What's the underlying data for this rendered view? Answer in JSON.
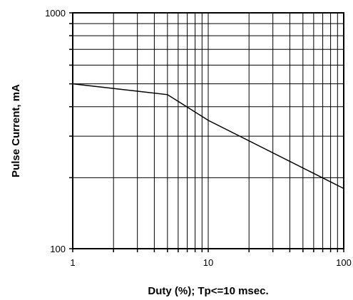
{
  "chart_data": {
    "type": "line",
    "title": "",
    "xlabel": "Duty (%); Tp<=10 msec.",
    "ylabel": "Pulse Current, mA",
    "x_scale": "log",
    "y_scale": "log",
    "xlim": [
      1,
      100
    ],
    "ylim": [
      100,
      1000
    ],
    "grid": true,
    "x_tick_labels": [
      "1",
      "10",
      "100"
    ],
    "y_tick_labels": [
      "100",
      "1000"
    ],
    "series": [
      {
        "points": [
          [
            1,
            500
          ],
          [
            5,
            450
          ],
          [
            10,
            350
          ],
          [
            100,
            180
          ]
        ]
      }
    ]
  }
}
